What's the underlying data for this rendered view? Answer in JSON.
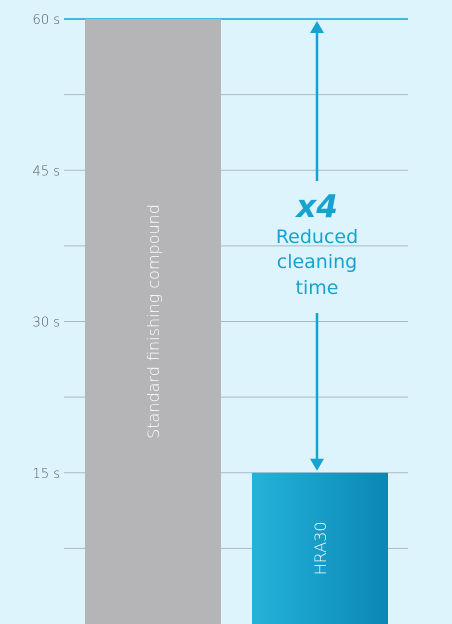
{
  "chart_data": {
    "type": "bar",
    "orientation": "vertical",
    "categories": [
      "Standard finishing compound",
      "HRA30"
    ],
    "values": [
      60,
      15
    ],
    "unit": "s",
    "ylim": [
      0,
      60
    ],
    "yticks": [
      15,
      30,
      45,
      60
    ],
    "ytick_labels": [
      "15 s",
      "30 s",
      "45 s",
      "60 s"
    ],
    "minor_gridlines": [
      7.5,
      22.5,
      37.5,
      52.5
    ],
    "grid": true,
    "title": "",
    "xlabel": "",
    "ylabel": "",
    "bar_label_placement": "inside, rotated vertical",
    "annotation": {
      "factor": "x4",
      "lines": [
        "Reduced",
        "cleaning",
        "time"
      ],
      "from_value": 60,
      "to_value": 15
    },
    "colors": {
      "background": "#def4fc",
      "grid": "#a9bac4",
      "bar_standard": "#b5b5b7",
      "bar_hra30_light": "#23b3d9",
      "bar_hra30_dark": "#0b87b5",
      "accent": "#16a3d0",
      "tick_text": "#4a5862",
      "bar_text": "#ffffff"
    }
  }
}
